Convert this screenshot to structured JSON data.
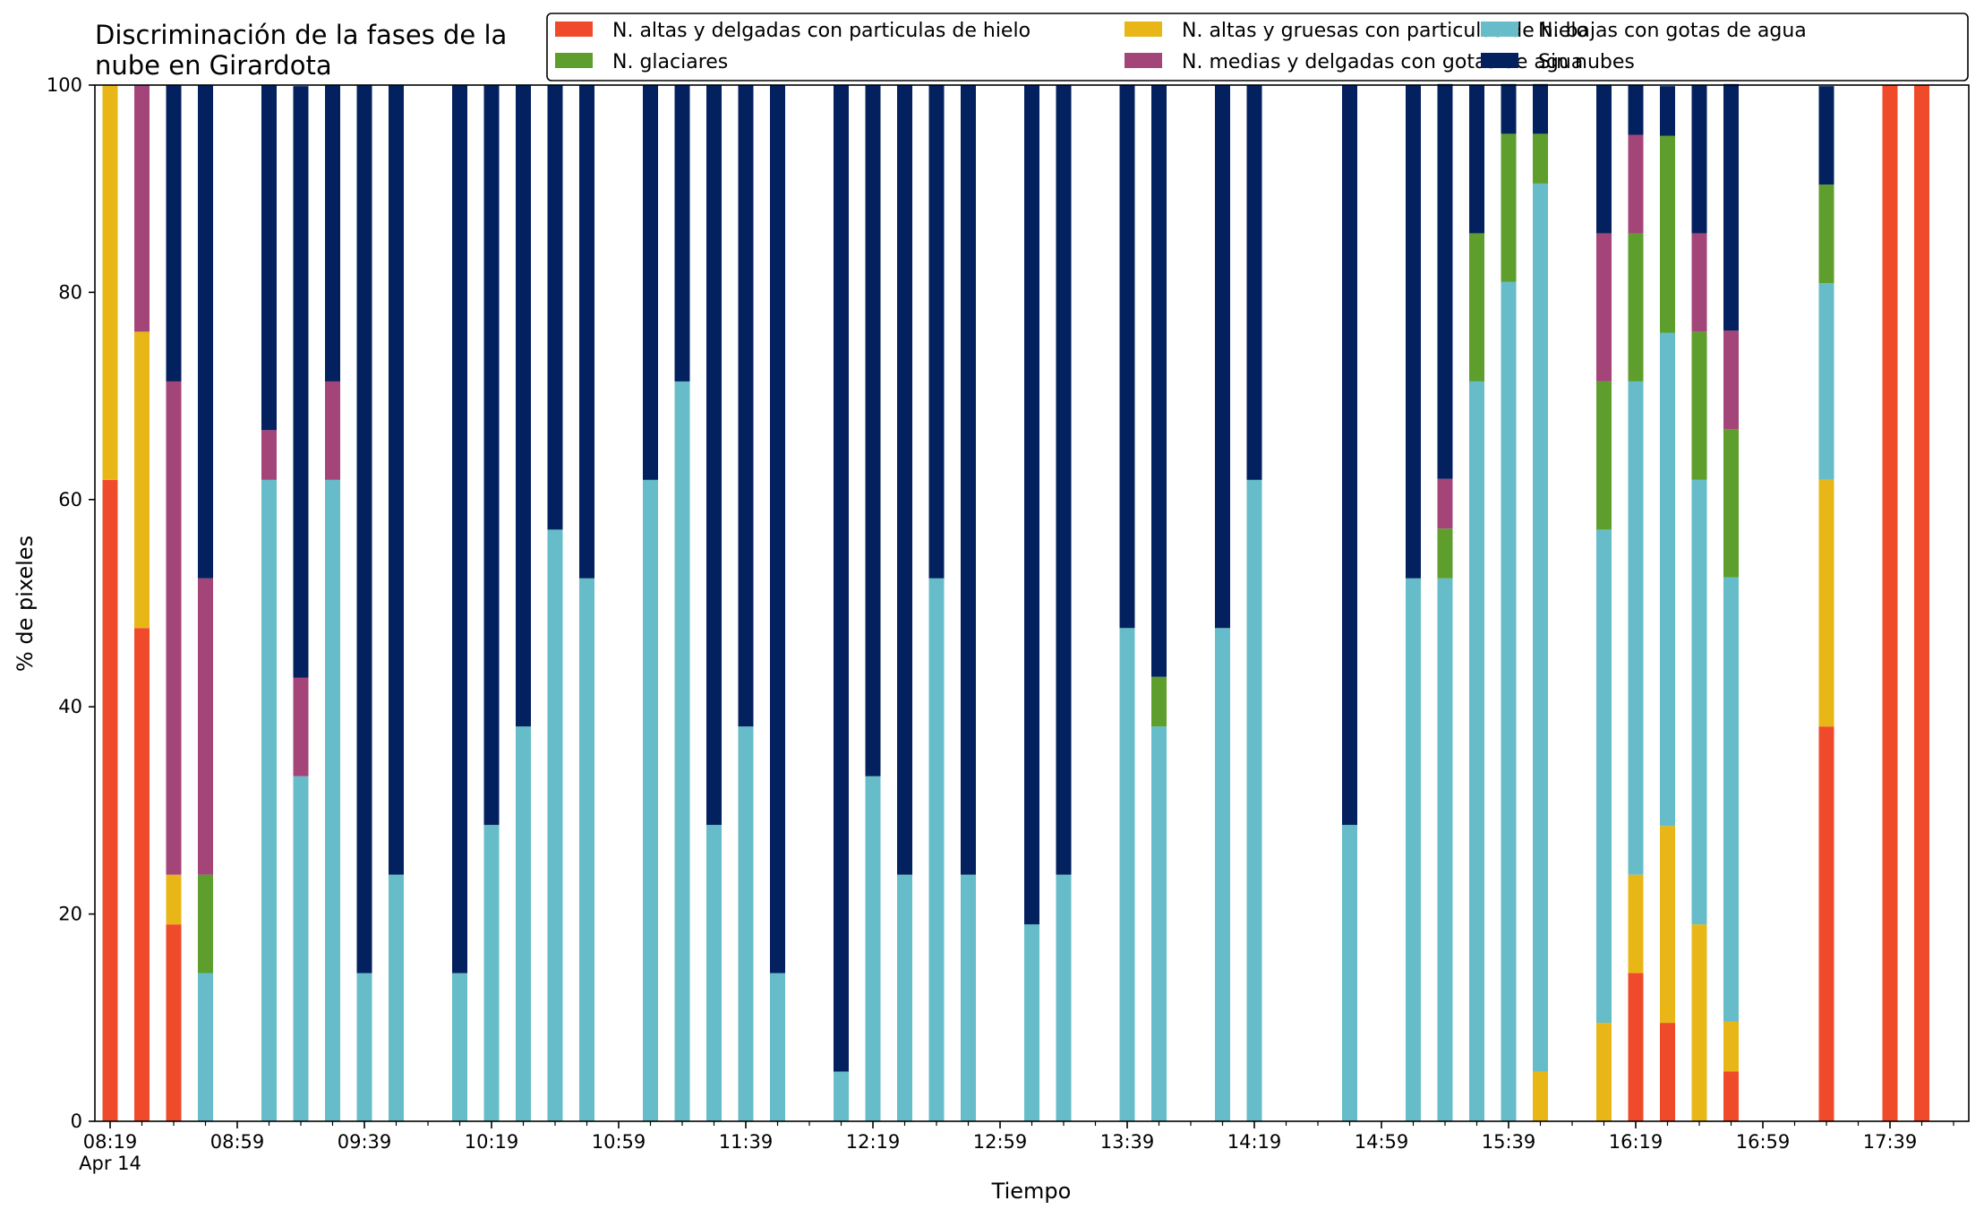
{
  "chart_data": {
    "type": "bar",
    "stacked": true,
    "title": "Discriminación de la fases de la nube en Girardota",
    "title_lines": [
      "Discriminación de la fases de la",
      "nube en Girardota"
    ],
    "xlabel": "Tiempo",
    "ylabel": "% de pixeles",
    "ylim": [
      0,
      100
    ],
    "yticks": [
      0,
      20,
      40,
      60,
      80,
      100
    ],
    "grid": false,
    "legend_position": "top-right",
    "x_unit": "minutes since 08:19",
    "xlim": [
      0,
      583
    ],
    "x_tick_labels": [
      {
        "x": 0,
        "label": "08:19",
        "sublabel": "Apr 14"
      },
      {
        "x": 40,
        "label": "08:59"
      },
      {
        "x": 80,
        "label": "09:39"
      },
      {
        "x": 120,
        "label": "10:19"
      },
      {
        "x": 160,
        "label": "10:59"
      },
      {
        "x": 200,
        "label": "11:39"
      },
      {
        "x": 240,
        "label": "12:19"
      },
      {
        "x": 280,
        "label": "12:59"
      },
      {
        "x": 320,
        "label": "13:39"
      },
      {
        "x": 360,
        "label": "14:19"
      },
      {
        "x": 400,
        "label": "14:59"
      },
      {
        "x": 440,
        "label": "15:39"
      },
      {
        "x": 480,
        "label": "16:19"
      },
      {
        "x": 520,
        "label": "16:59"
      },
      {
        "x": 560,
        "label": "17:39"
      }
    ],
    "x_minor_ticks": [
      10,
      20,
      30,
      50,
      60,
      70,
      90,
      100,
      110,
      130,
      140,
      150,
      170,
      180,
      190,
      210,
      220,
      230,
      250,
      260,
      270,
      290,
      300,
      310,
      330,
      340,
      350,
      370,
      380,
      390,
      410,
      420,
      430,
      450,
      460,
      470,
      490,
      500,
      510,
      530,
      540,
      550,
      570,
      580
    ],
    "series_order_bottom_to_top": [
      "altas_delgadas",
      "altas_gruesas",
      "bajas_agua",
      "glaciares",
      "medias_agua",
      "sin_nubes"
    ],
    "series": [
      {
        "key": "altas_delgadas",
        "name": "N. altas y delgadas con particulas de hielo",
        "color": "#EF4B2B"
      },
      {
        "key": "altas_gruesas",
        "name": "N. altas y gruesas con particulas de hielo",
        "color": "#E8B717"
      },
      {
        "key": "bajas_agua",
        "name": "N. bajas con gotas de agua",
        "color": "#66BDC9"
      },
      {
        "key": "glaciares",
        "name": "N. glaciares",
        "color": "#5D9E2C"
      },
      {
        "key": "medias_agua",
        "name": "N. medias y delgadas con gotas de agua",
        "color": "#A4457A"
      },
      {
        "key": "sin_nubes",
        "name": "Sin nubes",
        "color": "#03205F"
      }
    ],
    "bars": [
      {
        "x": 0,
        "altas_delgadas": 61.9,
        "altas_gruesas": 38.1,
        "bajas_agua": 0,
        "glaciares": 0,
        "medias_agua": 0,
        "sin_nubes": 0
      },
      {
        "x": 10,
        "altas_delgadas": 47.6,
        "altas_gruesas": 28.6,
        "bajas_agua": 0,
        "glaciares": 0,
        "medias_agua": 23.8,
        "sin_nubes": 0
      },
      {
        "x": 20,
        "altas_delgadas": 19.0,
        "altas_gruesas": 4.8,
        "bajas_agua": 0,
        "glaciares": 0,
        "medias_agua": 47.6,
        "sin_nubes": 28.6
      },
      {
        "x": 30,
        "altas_delgadas": 0,
        "altas_gruesas": 0,
        "bajas_agua": 14.3,
        "glaciares": 9.5,
        "medias_agua": 28.6,
        "sin_nubes": 47.6
      },
      {
        "x": 50,
        "altas_delgadas": 0,
        "altas_gruesas": 0,
        "bajas_agua": 61.9,
        "glaciares": 0,
        "medias_agua": 4.8,
        "sin_nubes": 33.3
      },
      {
        "x": 60,
        "altas_delgadas": 0,
        "altas_gruesas": 0,
        "bajas_agua": 33.3,
        "glaciares": 0,
        "medias_agua": 9.5,
        "sin_nubes": 57.1
      },
      {
        "x": 70,
        "altas_delgadas": 0,
        "altas_gruesas": 0,
        "bajas_agua": 61.9,
        "glaciares": 0,
        "medias_agua": 9.5,
        "sin_nubes": 28.6
      },
      {
        "x": 80,
        "altas_delgadas": 0,
        "altas_gruesas": 0,
        "bajas_agua": 14.3,
        "glaciares": 0,
        "medias_agua": 0,
        "sin_nubes": 85.7
      },
      {
        "x": 90,
        "altas_delgadas": 0,
        "altas_gruesas": 0,
        "bajas_agua": 23.8,
        "glaciares": 0,
        "medias_agua": 0,
        "sin_nubes": 76.2
      },
      {
        "x": 110,
        "altas_delgadas": 0,
        "altas_gruesas": 0,
        "bajas_agua": 14.3,
        "glaciares": 0,
        "medias_agua": 0,
        "sin_nubes": 85.7
      },
      {
        "x": 120,
        "altas_delgadas": 0,
        "altas_gruesas": 0,
        "bajas_agua": 28.6,
        "glaciares": 0,
        "medias_agua": 0,
        "sin_nubes": 71.4
      },
      {
        "x": 130,
        "altas_delgadas": 0,
        "altas_gruesas": 0,
        "bajas_agua": 38.1,
        "glaciares": 0,
        "medias_agua": 0,
        "sin_nubes": 61.9
      },
      {
        "x": 140,
        "altas_delgadas": 0,
        "altas_gruesas": 0,
        "bajas_agua": 57.1,
        "glaciares": 0,
        "medias_agua": 0,
        "sin_nubes": 42.9
      },
      {
        "x": 150,
        "altas_delgadas": 0,
        "altas_gruesas": 0,
        "bajas_agua": 52.4,
        "glaciares": 0,
        "medias_agua": 0,
        "sin_nubes": 47.6
      },
      {
        "x": 170,
        "altas_delgadas": 0,
        "altas_gruesas": 0,
        "bajas_agua": 61.9,
        "glaciares": 0,
        "medias_agua": 0,
        "sin_nubes": 38.1
      },
      {
        "x": 180,
        "altas_delgadas": 0,
        "altas_gruesas": 0,
        "bajas_agua": 71.4,
        "glaciares": 0,
        "medias_agua": 0,
        "sin_nubes": 28.6
      },
      {
        "x": 190,
        "altas_delgadas": 0,
        "altas_gruesas": 0,
        "bajas_agua": 28.6,
        "glaciares": 0,
        "medias_agua": 0,
        "sin_nubes": 71.4
      },
      {
        "x": 200,
        "altas_delgadas": 0,
        "altas_gruesas": 0,
        "bajas_agua": 38.1,
        "glaciares": 0,
        "medias_agua": 0,
        "sin_nubes": 61.9
      },
      {
        "x": 210,
        "altas_delgadas": 0,
        "altas_gruesas": 0,
        "bajas_agua": 14.3,
        "glaciares": 0,
        "medias_agua": 0,
        "sin_nubes": 85.7
      },
      {
        "x": 230,
        "altas_delgadas": 0,
        "altas_gruesas": 0,
        "bajas_agua": 4.8,
        "glaciares": 0,
        "medias_agua": 0,
        "sin_nubes": 95.2
      },
      {
        "x": 240,
        "altas_delgadas": 0,
        "altas_gruesas": 0,
        "bajas_agua": 33.3,
        "glaciares": 0,
        "medias_agua": 0,
        "sin_nubes": 66.7
      },
      {
        "x": 250,
        "altas_delgadas": 0,
        "altas_gruesas": 0,
        "bajas_agua": 23.8,
        "glaciares": 0,
        "medias_agua": 0,
        "sin_nubes": 76.2
      },
      {
        "x": 260,
        "altas_delgadas": 0,
        "altas_gruesas": 0,
        "bajas_agua": 52.4,
        "glaciares": 0,
        "medias_agua": 0,
        "sin_nubes": 47.6
      },
      {
        "x": 270,
        "altas_delgadas": 0,
        "altas_gruesas": 0,
        "bajas_agua": 23.8,
        "glaciares": 0,
        "medias_agua": 0,
        "sin_nubes": 76.2
      },
      {
        "x": 290,
        "altas_delgadas": 0,
        "altas_gruesas": 0,
        "bajas_agua": 19.0,
        "glaciares": 0,
        "medias_agua": 0,
        "sin_nubes": 81.0
      },
      {
        "x": 300,
        "altas_delgadas": 0,
        "altas_gruesas": 0,
        "bajas_agua": 23.8,
        "glaciares": 0,
        "medias_agua": 0,
        "sin_nubes": 76.2
      },
      {
        "x": 320,
        "altas_delgadas": 0,
        "altas_gruesas": 0,
        "bajas_agua": 47.6,
        "glaciares": 0,
        "medias_agua": 0,
        "sin_nubes": 52.4
      },
      {
        "x": 330,
        "altas_delgadas": 0,
        "altas_gruesas": 0,
        "bajas_agua": 38.1,
        "glaciares": 4.8,
        "medias_agua": 0,
        "sin_nubes": 57.1
      },
      {
        "x": 350,
        "altas_delgadas": 0,
        "altas_gruesas": 0,
        "bajas_agua": 47.6,
        "glaciares": 0,
        "medias_agua": 0,
        "sin_nubes": 52.4
      },
      {
        "x": 360,
        "altas_delgadas": 0,
        "altas_gruesas": 0,
        "bajas_agua": 61.9,
        "glaciares": 0,
        "medias_agua": 0,
        "sin_nubes": 38.1
      },
      {
        "x": 390,
        "altas_delgadas": 0,
        "altas_gruesas": 0,
        "bajas_agua": 28.6,
        "glaciares": 0,
        "medias_agua": 0,
        "sin_nubes": 71.4
      },
      {
        "x": 410,
        "altas_delgadas": 0,
        "altas_gruesas": 0,
        "bajas_agua": 52.4,
        "glaciares": 0,
        "medias_agua": 0,
        "sin_nubes": 47.6
      },
      {
        "x": 420,
        "altas_delgadas": 0,
        "altas_gruesas": 0,
        "bajas_agua": 52.4,
        "glaciares": 4.8,
        "medias_agua": 4.8,
        "sin_nubes": 38.1
      },
      {
        "x": 430,
        "altas_delgadas": 0,
        "altas_gruesas": 0,
        "bajas_agua": 71.4,
        "glaciares": 14.3,
        "medias_agua": 0,
        "sin_nubes": 14.3
      },
      {
        "x": 440,
        "altas_delgadas": 0,
        "altas_gruesas": 0,
        "bajas_agua": 81.0,
        "glaciares": 14.3,
        "medias_agua": 0,
        "sin_nubes": 4.8
      },
      {
        "x": 450,
        "altas_delgadas": 0,
        "altas_gruesas": 4.8,
        "bajas_agua": 85.7,
        "glaciares": 4.8,
        "medias_agua": 0,
        "sin_nubes": 4.8
      },
      {
        "x": 470,
        "altas_delgadas": 0,
        "altas_gruesas": 9.5,
        "bajas_agua": 47.6,
        "glaciares": 14.3,
        "medias_agua": 14.3,
        "sin_nubes": 14.3
      },
      {
        "x": 480,
        "altas_delgadas": 14.3,
        "altas_gruesas": 9.5,
        "bajas_agua": 47.6,
        "glaciares": 14.3,
        "medias_agua": 9.5,
        "sin_nubes": 4.8
      },
      {
        "x": 490,
        "altas_delgadas": 9.5,
        "altas_gruesas": 19.0,
        "bajas_agua": 47.6,
        "glaciares": 19.0,
        "medias_agua": 0,
        "sin_nubes": 4.8
      },
      {
        "x": 500,
        "altas_delgadas": 0,
        "altas_gruesas": 19.0,
        "bajas_agua": 42.9,
        "glaciares": 14.3,
        "medias_agua": 9.5,
        "sin_nubes": 14.3
      },
      {
        "x": 510,
        "altas_delgadas": 4.8,
        "altas_gruesas": 4.8,
        "bajas_agua": 42.9,
        "glaciares": 14.3,
        "medias_agua": 9.5,
        "sin_nubes": 23.8
      },
      {
        "x": 540,
        "altas_delgadas": 38.1,
        "altas_gruesas": 23.8,
        "bajas_agua": 19.0,
        "glaciares": 9.5,
        "medias_agua": 0,
        "sin_nubes": 9.5
      },
      {
        "x": 560,
        "altas_delgadas": 100,
        "altas_gruesas": 0,
        "bajas_agua": 0,
        "glaciares": 0,
        "medias_agua": 0,
        "sin_nubes": 0
      },
      {
        "x": 570,
        "altas_delgadas": 100,
        "altas_gruesas": 0,
        "bajas_agua": 0,
        "glaciares": 0,
        "medias_agua": 0,
        "sin_nubes": 0
      }
    ]
  }
}
